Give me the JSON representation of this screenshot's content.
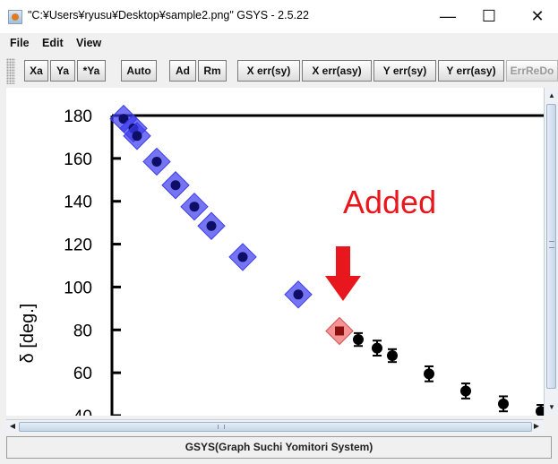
{
  "window": {
    "title": "\"C:¥Users¥ryusu¥Desktop¥sample2.png\" GSYS - 2.5.22",
    "minimize_glyph": "—",
    "maximize_glyph": "☐",
    "close_glyph": "✕"
  },
  "menu": [
    {
      "label": "File"
    },
    {
      "label": "Edit"
    },
    {
      "label": "View"
    }
  ],
  "toolbar": [
    {
      "label": "Xa"
    },
    {
      "label": "Ya"
    },
    {
      "label": "*Ya"
    },
    {
      "label": "Auto"
    },
    {
      "label": "Ad"
    },
    {
      "label": "Rm"
    },
    {
      "label": "X err(sy)"
    },
    {
      "label": "X err(asy)"
    },
    {
      "label": "Y err(sy)"
    },
    {
      "label": "Y err(asy)"
    },
    {
      "label": "ErrReDo"
    }
  ],
  "annotation": {
    "text": "Added",
    "color": "#e8171d"
  },
  "plot": {
    "ylabel": "δ [deg.]",
    "yticks": [
      40,
      60,
      80,
      100,
      120,
      140,
      160,
      180
    ],
    "ylim": [
      40,
      180
    ],
    "selected_points": [
      {
        "index": 1,
        "y": 178.5
      },
      {
        "index": 2,
        "y": 174
      },
      {
        "index": 3,
        "y": 170.5
      },
      {
        "index": 4,
        "y": 158.5
      },
      {
        "index": 5,
        "y": 147.5
      },
      {
        "index": 6,
        "y": 137.5
      },
      {
        "index": 7,
        "y": 128.5
      },
      {
        "index": 8,
        "y": 114
      },
      {
        "index": 9,
        "y": 96.5
      }
    ],
    "added_point": {
      "index": 10,
      "y": 79.5
    },
    "data_points": [
      {
        "index": 11,
        "y": 75.5,
        "err": 3
      },
      {
        "index": 12,
        "y": 71.5,
        "err": 3.5
      },
      {
        "index": 13,
        "y": 68,
        "err": 3
      },
      {
        "index": 14,
        "y": 59.5,
        "err": 3.5
      },
      {
        "index": 15,
        "y": 51.5,
        "err": 3.5
      },
      {
        "index": 16,
        "y": 45.5,
        "err": 3.5
      },
      {
        "index": 17,
        "y": 42,
        "err": 3
      }
    ],
    "colors": {
      "selected": "#3b3bee",
      "added": "#f07070",
      "point": "#000000"
    }
  },
  "status": {
    "text": "GSYS(Graph Suchi Yomitori System)"
  }
}
